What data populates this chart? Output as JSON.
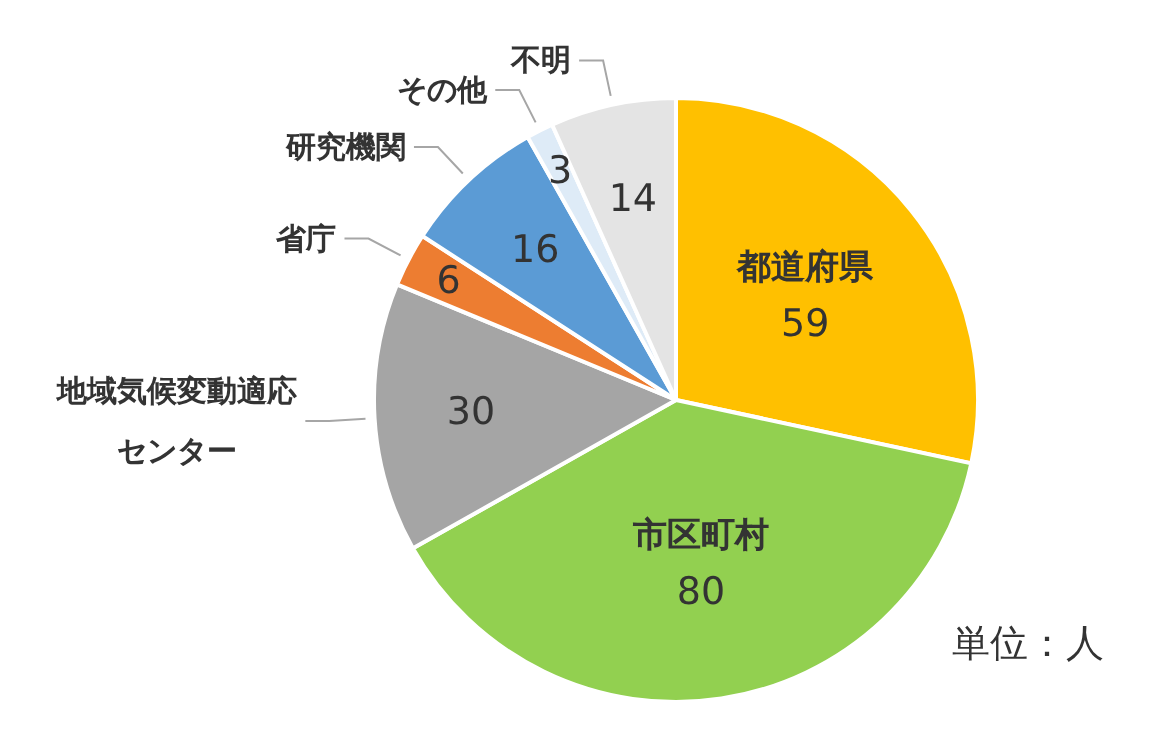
{
  "chart_data": {
    "type": "pie",
    "categories": [
      "都道府県",
      "市区町村",
      "地域気候変動適応センター",
      "省庁",
      "研究機関",
      "その他",
      "不明"
    ],
    "values": [
      59,
      80,
      30,
      6,
      16,
      3,
      14
    ],
    "colors": [
      "#ffc000",
      "#92d050",
      "#a5a5a5",
      "#ed7d31",
      "#5b9bd5",
      "#deebf7",
      "#e4e4e4"
    ],
    "data_labels": true,
    "annotations": [
      "単位：人"
    ]
  }
}
